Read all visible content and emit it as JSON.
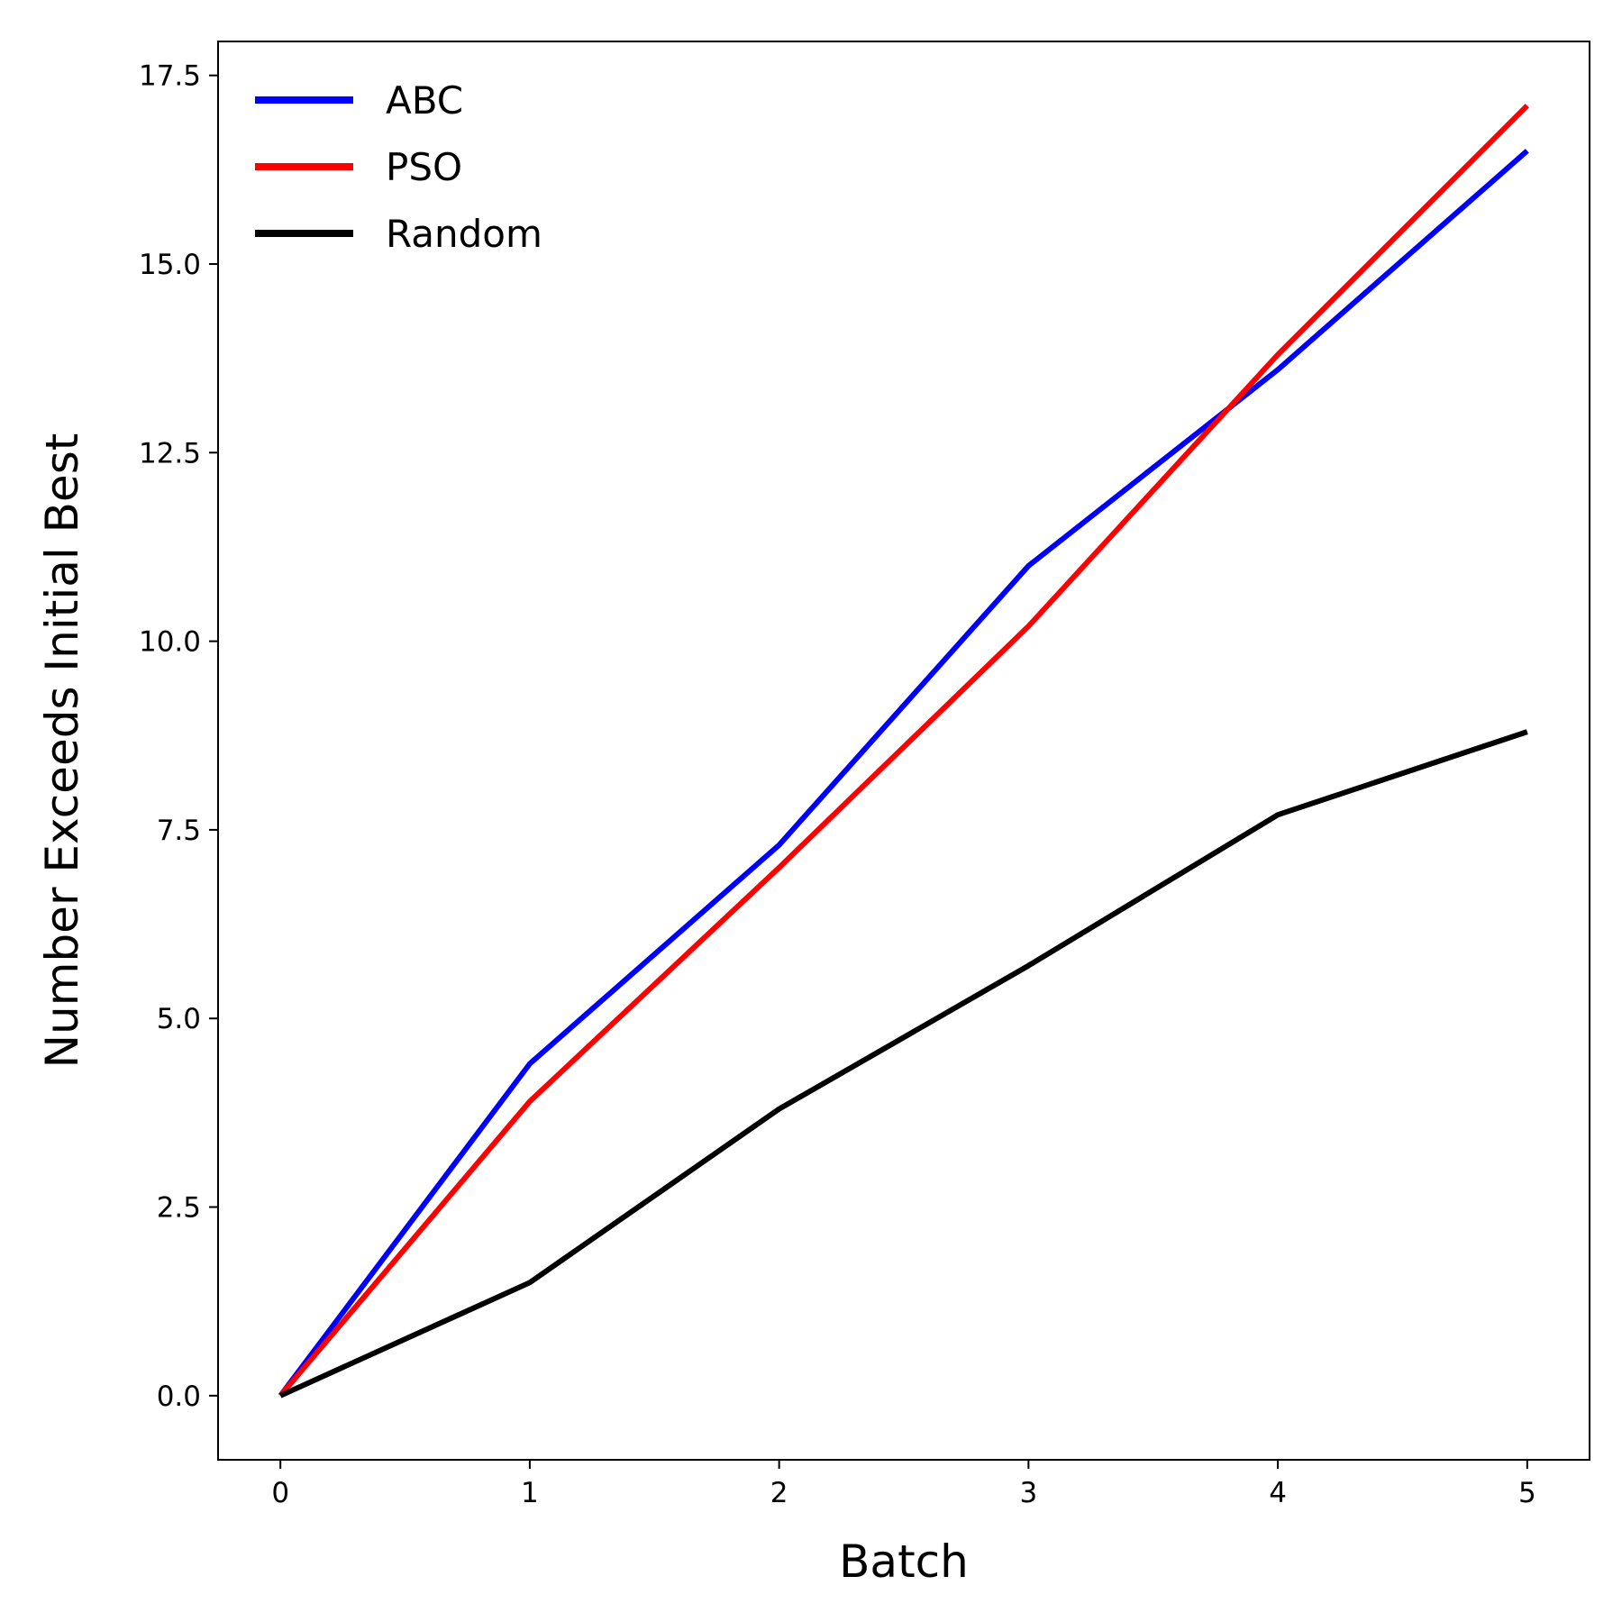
{
  "chart_data": {
    "type": "line",
    "xlabel": "Batch",
    "ylabel": "Number Exceeds Initial Best",
    "x": [
      0,
      1,
      2,
      3,
      4,
      5
    ],
    "xlim": [
      -0.25,
      5.25
    ],
    "ylim": [
      -0.85,
      17.95
    ],
    "xticks": [
      0,
      1,
      2,
      3,
      4,
      5
    ],
    "xtick_labels": [
      "0",
      "1",
      "2",
      "3",
      "4",
      "5"
    ],
    "yticks": [
      0,
      2.5,
      5,
      7.5,
      10,
      12.5,
      15,
      17.5
    ],
    "ytick_labels": [
      "0.0",
      "2.5",
      "5.0",
      "7.5",
      "10.0",
      "12.5",
      "15.0",
      "17.5"
    ],
    "grid": false,
    "legend_position": "top-left",
    "series": [
      {
        "name": "ABC",
        "color": "#0000ff",
        "values": [
          0,
          4.4,
          7.3,
          11.0,
          13.6,
          16.5
        ]
      },
      {
        "name": "PSO",
        "color": "#ff0000",
        "values": [
          0,
          3.9,
          7.0,
          10.2,
          13.8,
          17.1
        ]
      },
      {
        "name": "Random",
        "color": "#000000",
        "values": [
          0,
          1.5,
          3.8,
          5.7,
          7.7,
          8.8
        ]
      }
    ]
  }
}
